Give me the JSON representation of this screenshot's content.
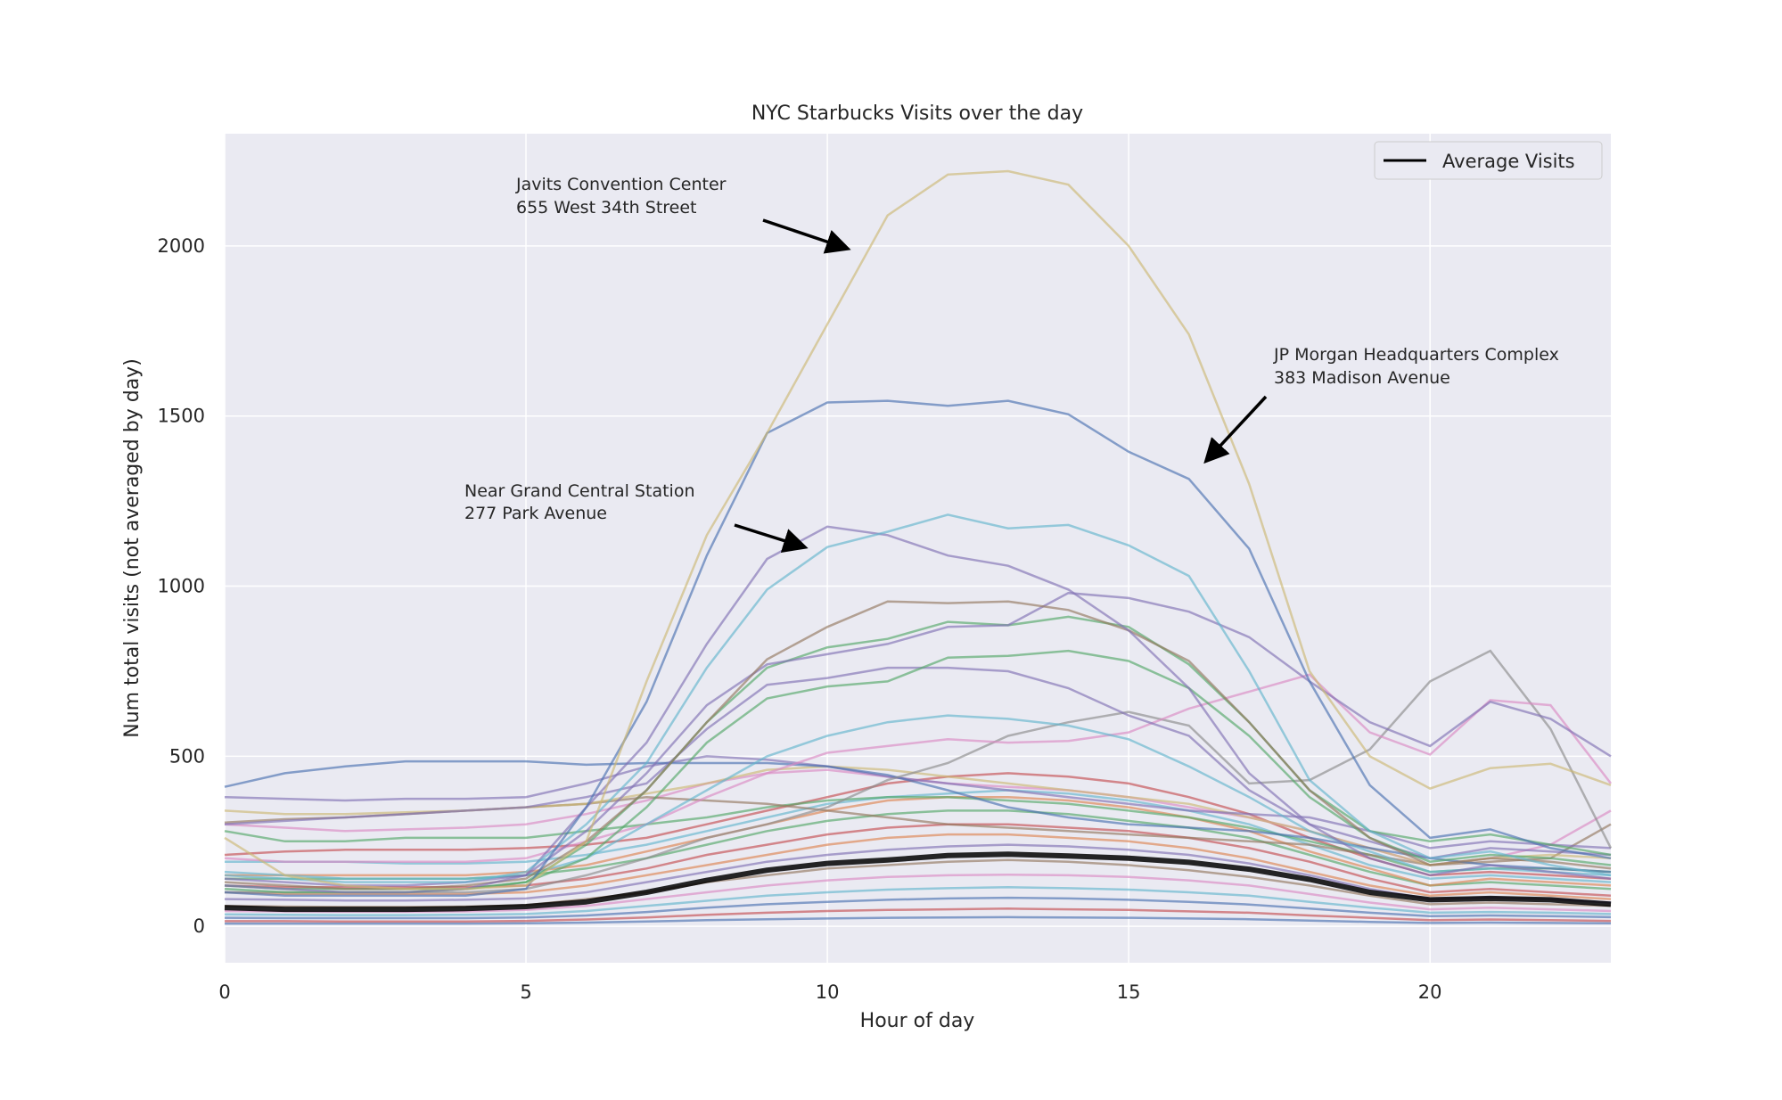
{
  "chart_data": {
    "type": "line",
    "title": "NYC Starbucks Visits over the day",
    "xlabel": "Hour of day",
    "ylabel": "Num total visits (not averaged by day)",
    "xlim": [
      0,
      23
    ],
    "ylim": [
      -107,
      2330
    ],
    "xticks": [
      0,
      5,
      10,
      15,
      20
    ],
    "yticks": [
      0,
      500,
      1000,
      1500,
      2000
    ],
    "grid": true,
    "background": "#EAEAF2",
    "legend": {
      "position": "top-right",
      "entries": [
        {
          "label": "Average Visits",
          "color": "#000000"
        }
      ]
    },
    "palette": [
      "#4C72B0",
      "#DD8452",
      "#55A868",
      "#C44E52",
      "#8172B3",
      "#937860",
      "#DA8BC3",
      "#8C8C8C",
      "#CCB974",
      "#64B5CD"
    ],
    "x": [
      0,
      1,
      2,
      3,
      4,
      5,
      6,
      7,
      8,
      9,
      10,
      11,
      12,
      13,
      14,
      15,
      16,
      17,
      18,
      19,
      20,
      21,
      22,
      23
    ],
    "series": [
      {
        "values": [
          260,
          150,
          120,
          110,
          110,
          120,
          250,
          720,
          1150,
          1450,
          1770,
          2090,
          2210,
          2220,
          2180,
          2000,
          1740,
          1300,
          750,
          500,
          405,
          465,
          478,
          415
        ],
        "color": "#CCB974"
      },
      {
        "values": [
          100,
          90,
          90,
          90,
          90,
          110,
          350,
          660,
          1090,
          1450,
          1540,
          1545,
          1530,
          1545,
          1505,
          1395,
          1315,
          1110,
          720,
          415,
          260,
          285,
          230,
          200
        ],
        "color": "#4C72B0"
      },
      {
        "values": [
          150,
          140,
          130,
          130,
          130,
          160,
          300,
          480,
          760,
          990,
          1115,
          1160,
          1210,
          1170,
          1180,
          1120,
          1030,
          750,
          430,
          280,
          200,
          220,
          180,
          150
        ],
        "color": "#64B5CD"
      },
      {
        "values": [
          120,
          110,
          100,
          100,
          110,
          150,
          350,
          540,
          830,
          1080,
          1175,
          1150,
          1090,
          1060,
          990,
          870,
          700,
          450,
          300,
          200,
          150,
          180,
          160,
          140
        ],
        "color": "#8172B3"
      },
      {
        "values": [
          130,
          120,
          110,
          110,
          120,
          140,
          250,
          400,
          600,
          785,
          880,
          955,
          950,
          955,
          930,
          870,
          780,
          600,
          400,
          260,
          180,
          200,
          190,
          170
        ],
        "color": "#937860"
      },
      {
        "values": [
          140,
          130,
          120,
          120,
          130,
          150,
          280,
          450,
          650,
          770,
          800,
          830,
          880,
          885,
          980,
          965,
          925,
          850,
          720,
          600,
          530,
          660,
          610,
          500
        ],
        "color": "#8172B3"
      },
      {
        "values": [
          120,
          110,
          110,
          110,
          110,
          130,
          240,
          400,
          600,
          760,
          820,
          845,
          895,
          885,
          910,
          880,
          770,
          600,
          400,
          280,
          250,
          270,
          240,
          210
        ],
        "color": "#55A868"
      },
      {
        "values": [
          110,
          100,
          100,
          100,
          110,
          130,
          200,
          350,
          540,
          670,
          705,
          720,
          790,
          795,
          810,
          780,
          700,
          560,
          380,
          260,
          190,
          210,
          200,
          180
        ],
        "color": "#55A868"
      },
      {
        "values": [
          300,
          310,
          320,
          330,
          340,
          350,
          380,
          420,
          580,
          710,
          730,
          760,
          760,
          750,
          700,
          620,
          560,
          400,
          300,
          250,
          200,
          230,
          220,
          210
        ],
        "color": "#8172B3"
      },
      {
        "values": [
          160,
          150,
          140,
          140,
          140,
          150,
          200,
          300,
          400,
          500,
          560,
          600,
          620,
          610,
          590,
          550,
          470,
          380,
          280,
          220,
          160,
          170,
          160,
          150
        ],
        "color": "#64B5CD"
      },
      {
        "values": [
          200,
          190,
          190,
          190,
          190,
          200,
          250,
          300,
          380,
          450,
          510,
          530,
          550,
          540,
          545,
          570,
          640,
          690,
          740,
          570,
          505,
          665,
          650,
          420
        ],
        "color": "#DA8BC3"
      },
      {
        "values": [
          100,
          100,
          100,
          100,
          100,
          110,
          150,
          200,
          260,
          300,
          350,
          430,
          480,
          560,
          600,
          630,
          590,
          420,
          430,
          520,
          720,
          810,
          580,
          230
        ],
        "color": "#8C8C8C"
      },
      {
        "values": [
          410,
          450,
          470,
          485,
          485,
          485,
          475,
          480,
          480,
          480,
          470,
          445,
          400,
          350,
          320,
          300,
          290,
          280,
          260,
          230,
          200,
          180,
          170,
          160
        ],
        "color": "#4C72B0"
      },
      {
        "values": [
          380,
          375,
          370,
          375,
          375,
          380,
          420,
          470,
          500,
          490,
          470,
          440,
          420,
          400,
          380,
          360,
          340,
          330,
          320,
          280,
          230,
          250,
          240,
          230
        ],
        "color": "#8172B3"
      },
      {
        "values": [
          340,
          330,
          330,
          335,
          340,
          350,
          360,
          390,
          420,
          460,
          470,
          460,
          440,
          420,
          400,
          380,
          360,
          320,
          280,
          230,
          180,
          200,
          210,
          200
        ],
        "color": "#CCB974"
      },
      {
        "values": [
          305,
          315,
          320,
          330,
          340,
          350,
          360,
          380,
          370,
          360,
          340,
          320,
          300,
          290,
          280,
          270,
          260,
          250,
          240,
          210,
          180,
          190,
          200,
          300
        ],
        "color": "#937860"
      },
      {
        "values": [
          300,
          290,
          280,
          285,
          290,
          300,
          330,
          370,
          420,
          450,
          460,
          440,
          420,
          410,
          400,
          380,
          350,
          320,
          280,
          230,
          180,
          200,
          240,
          340
        ],
        "color": "#DA8BC3"
      },
      {
        "values": [
          280,
          250,
          250,
          260,
          260,
          260,
          280,
          300,
          320,
          350,
          370,
          380,
          380,
          370,
          360,
          340,
          320,
          290,
          250,
          210,
          160,
          170,
          170,
          160
        ],
        "color": "#55A868"
      },
      {
        "values": [
          210,
          220,
          225,
          225,
          225,
          230,
          240,
          260,
          300,
          340,
          380,
          420,
          440,
          450,
          440,
          420,
          380,
          330,
          260,
          200,
          150,
          160,
          150,
          140
        ],
        "color": "#C44E52"
      },
      {
        "values": [
          190,
          190,
          190,
          185,
          185,
          190,
          210,
          240,
          280,
          320,
          360,
          380,
          390,
          400,
          390,
          370,
          340,
          300,
          240,
          180,
          140,
          150,
          140,
          130
        ],
        "color": "#64B5CD"
      },
      {
        "values": [
          150,
          150,
          150,
          150,
          150,
          160,
          180,
          220,
          260,
          300,
          340,
          370,
          380,
          380,
          370,
          350,
          320,
          280,
          220,
          170,
          120,
          140,
          130,
          120
        ],
        "color": "#DD8452"
      },
      {
        "values": [
          140,
          140,
          140,
          140,
          140,
          150,
          170,
          200,
          240,
          280,
          310,
          330,
          340,
          340,
          330,
          310,
          290,
          260,
          210,
          160,
          120,
          130,
          120,
          110
        ],
        "color": "#55A868"
      },
      {
        "values": [
          120,
          115,
          115,
          115,
          115,
          120,
          140,
          170,
          210,
          240,
          270,
          290,
          300,
          300,
          290,
          280,
          260,
          230,
          190,
          140,
          100,
          110,
          100,
          90
        ],
        "color": "#C44E52"
      },
      {
        "values": [
          100,
          95,
          95,
          95,
          95,
          100,
          120,
          150,
          180,
          210,
          240,
          260,
          270,
          270,
          260,
          250,
          230,
          200,
          160,
          120,
          90,
          100,
          90,
          80
        ],
        "color": "#DD8452"
      },
      {
        "values": [
          80,
          78,
          76,
          76,
          78,
          82,
          100,
          130,
          160,
          190,
          210,
          225,
          235,
          240,
          235,
          225,
          210,
          185,
          150,
          110,
          80,
          85,
          80,
          70
        ],
        "color": "#8172B3"
      },
      {
        "values": [
          60,
          58,
          57,
          57,
          58,
          62,
          80,
          100,
          130,
          150,
          170,
          180,
          190,
          195,
          190,
          180,
          165,
          145,
          120,
          90,
          65,
          70,
          65,
          60
        ],
        "color": "#937860"
      },
      {
        "values": [
          45,
          44,
          43,
          43,
          44,
          48,
          60,
          80,
          100,
          120,
          135,
          145,
          150,
          152,
          150,
          145,
          135,
          120,
          95,
          70,
          50,
          55,
          50,
          45
        ],
        "color": "#DA8BC3"
      },
      {
        "values": [
          35,
          34,
          33,
          33,
          34,
          36,
          45,
          60,
          75,
          90,
          100,
          108,
          112,
          115,
          112,
          108,
          100,
          90,
          72,
          55,
          40,
          42,
          40,
          36
        ],
        "color": "#64B5CD"
      },
      {
        "values": [
          25,
          24,
          24,
          24,
          24,
          26,
          32,
          42,
          55,
          65,
          72,
          78,
          82,
          84,
          82,
          78,
          72,
          64,
          52,
          40,
          30,
          32,
          30,
          27
        ],
        "color": "#4C72B0"
      },
      {
        "values": [
          15,
          15,
          14,
          14,
          14,
          16,
          20,
          26,
          34,
          40,
          45,
          48,
          50,
          52,
          50,
          48,
          44,
          40,
          32,
          25,
          18,
          20,
          18,
          16
        ],
        "color": "#C44E52"
      },
      {
        "values": [
          8,
          8,
          8,
          8,
          8,
          9,
          11,
          14,
          18,
          21,
          23,
          25,
          26,
          27,
          26,
          25,
          23,
          21,
          17,
          13,
          10,
          11,
          10,
          9
        ],
        "color": "#4C72B0"
      }
    ],
    "average": {
      "name": "Average Visits",
      "color": "#000000",
      "values": [
        55,
        50,
        50,
        50,
        52,
        58,
        72,
        100,
        135,
        165,
        185,
        195,
        208,
        212,
        207,
        200,
        188,
        168,
        138,
        100,
        78,
        82,
        78,
        65
      ]
    },
    "annotations": [
      {
        "line1": "Javits Convention Center",
        "line2": "655 West 34th Street"
      },
      {
        "line1": "JP Morgan Headquarters Complex",
        "line2": "383 Madison Avenue"
      },
      {
        "line1": "Near Grand Central Station",
        "line2": "277 Park Avenue"
      }
    ]
  }
}
